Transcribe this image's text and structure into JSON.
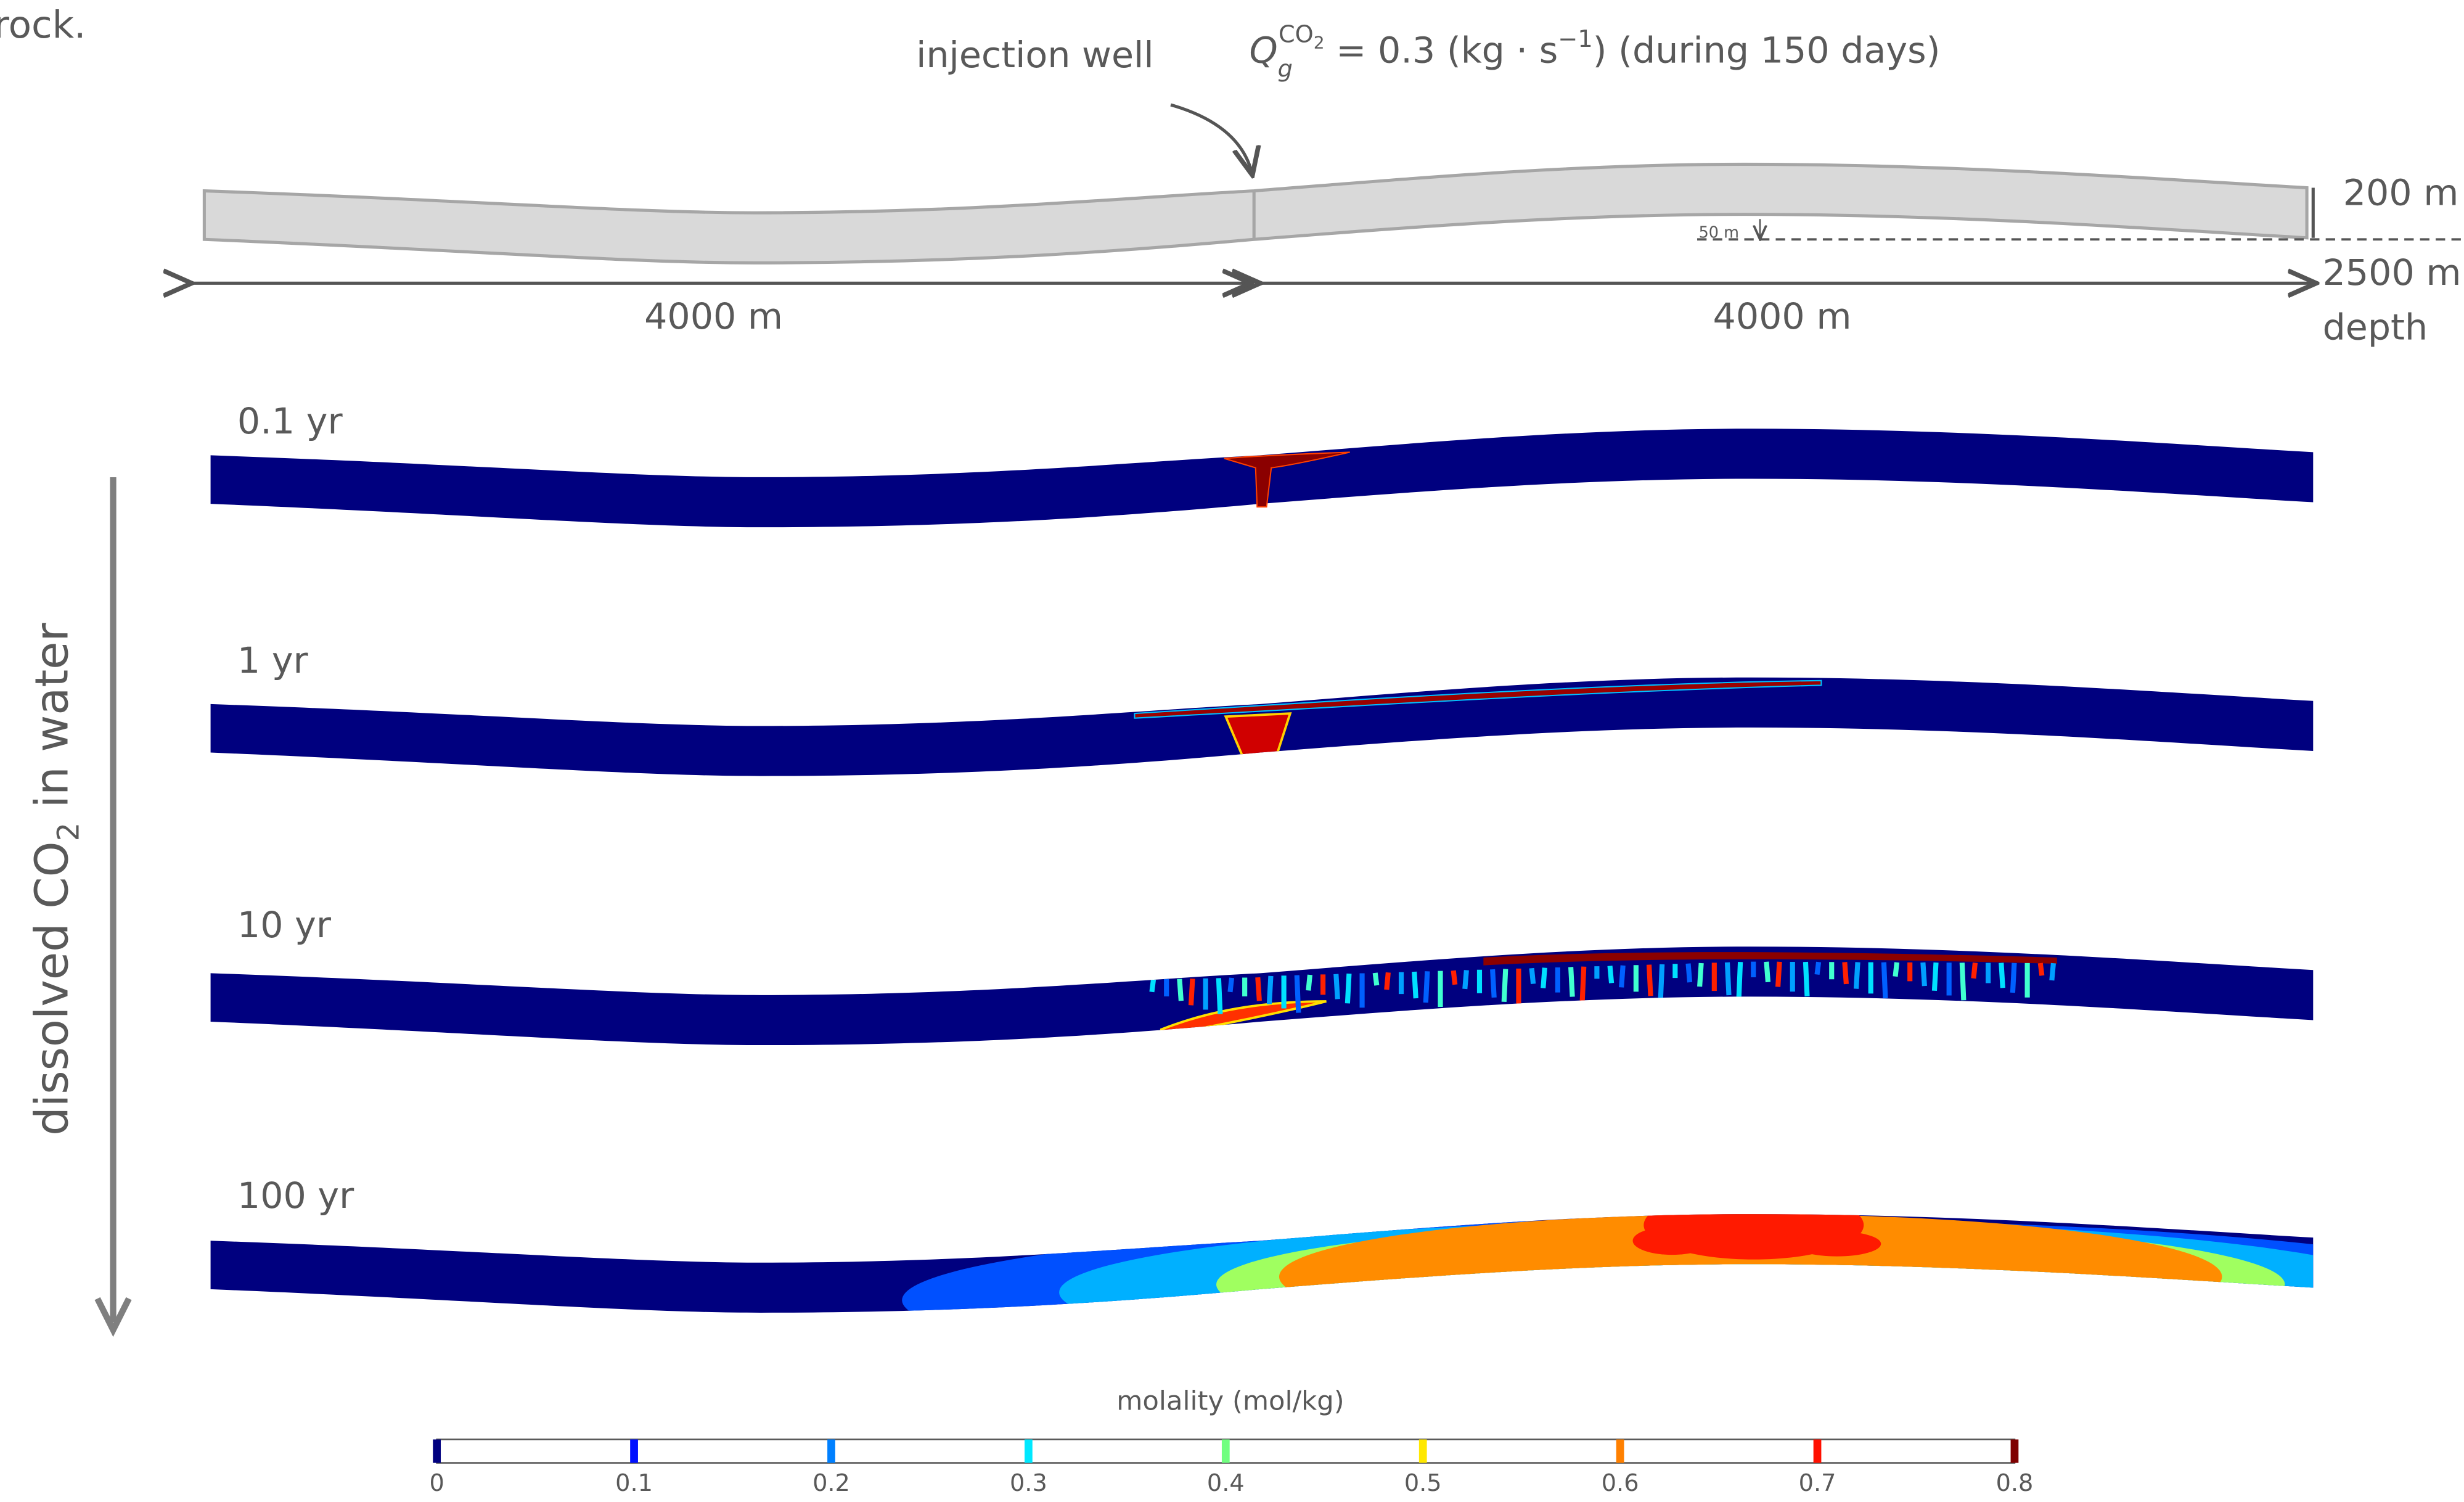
{
  "caption_fragment": "rock.",
  "schematic": {
    "well_label": "injection well",
    "rate_formula": [
      "Q",
      "g",
      "CO",
      "2",
      " = 0.3 (kg · s",
      "−1",
      ") (during 150 days)"
    ],
    "thickness": "200 m",
    "amplitude": "50 m",
    "left_length": "4000 m",
    "right_length": "4000 m",
    "depth_value": "2500 m",
    "depth_word": "depth"
  },
  "panels": [
    "0.1 yr",
    "1 yr",
    "10 yr",
    "100 yr"
  ],
  "axis_label": [
    "dissolved CO",
    "2",
    " in water"
  ],
  "colorbar": {
    "title": "molality (mol/kg)",
    "ticks": [
      0,
      0.1,
      0.2,
      0.3,
      0.4,
      0.5,
      0.6,
      0.7,
      0.8
    ]
  }
}
